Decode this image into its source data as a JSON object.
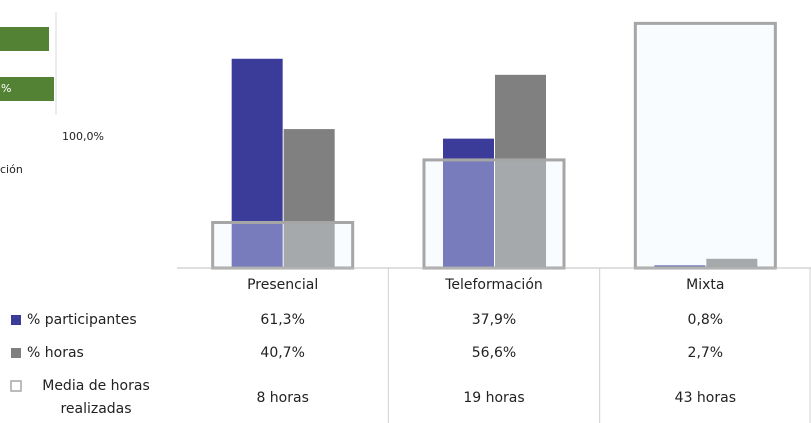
{
  "fragment": {
    "labels": [
      "%",
      "100,0%",
      "ción"
    ]
  },
  "chart_data": {
    "type": "bar",
    "categories": [
      "Presencial",
      "Teleformación",
      "Mixta"
    ],
    "series": [
      {
        "name": "% participantes",
        "color": "#3b3b9a",
        "values": [
          61.3,
          37.9,
          0.8
        ],
        "value_labels": [
          "61,3%",
          "37,9%",
          "0,8%"
        ]
      },
      {
        "name": "% horas",
        "color": "#808080",
        "values": [
          40.7,
          56.6,
          2.7
        ],
        "value_labels": [
          "40,7%",
          "56,6%",
          "2,7%"
        ]
      },
      {
        "name": "Media de horas realizadas",
        "color": "#a6a6a6",
        "axis": "y2",
        "values": [
          8,
          19,
          43
        ],
        "value_labels": [
          "8 horas",
          "19 horas",
          "43 horas"
        ]
      }
    ],
    "ylim": [
      0,
      75
    ],
    "y2lim": [
      0,
      45
    ]
  }
}
